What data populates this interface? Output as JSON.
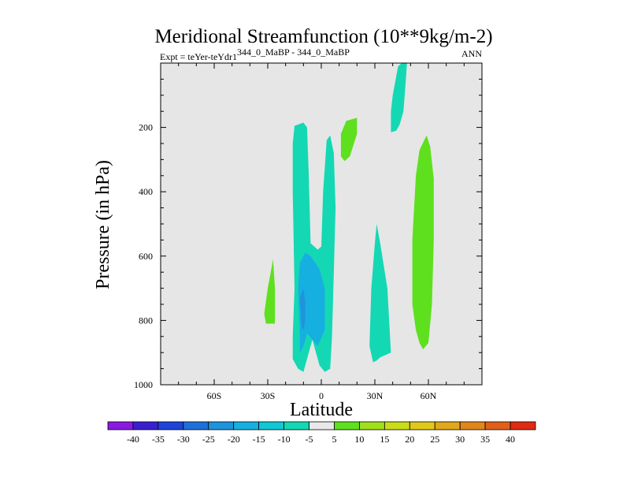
{
  "chart_data": {
    "type": "contour",
    "title": "Meridional Streamfunction (10**9kg/m-2)",
    "subtitle_left_prefix": "Expt = teYer-teYdr1",
    "subtitle_left_superscript": "344_0_MaBP - 344_0_MaBP",
    "subtitle_right": "ANN",
    "xlabel": "Latitude",
    "ylabel": "Pressure (in hPa)",
    "xlim": [
      -90,
      90
    ],
    "ylim": [
      1000,
      0
    ],
    "x_ticks": [
      {
        "value": -60,
        "label": "60S"
      },
      {
        "value": -30,
        "label": "30S"
      },
      {
        "value": 0,
        "label": "0"
      },
      {
        "value": 30,
        "label": "30N"
      },
      {
        "value": 60,
        "label": "60N"
      }
    ],
    "y_ticks": [
      {
        "value": 200,
        "label": "200"
      },
      {
        "value": 400,
        "label": "400"
      },
      {
        "value": 600,
        "label": "600"
      },
      {
        "value": 800,
        "label": "800"
      },
      {
        "value": 1000,
        "label": "1000"
      }
    ],
    "background_color": "#e6e6e6",
    "levels": [
      -40,
      -35,
      -30,
      -25,
      -20,
      -15,
      -10,
      -5,
      5,
      10,
      15,
      20,
      25,
      30,
      35,
      40
    ],
    "colorbar_colors": [
      "#8a1ae0",
      "#3a1fd0",
      "#1e44d8",
      "#1f6fd9",
      "#1f93dc",
      "#16b0e0",
      "#12c7d4",
      "#14d8b4",
      "#e8e8e8",
      "#5ee01e",
      "#a0e01a",
      "#cadc1a",
      "#e0c81a",
      "#e0a81a",
      "#e0861a",
      "#e0601a",
      "#e02a12"
    ],
    "regions": [
      {
        "color": "#5ee01e",
        "points": [
          [
            -31,
            810
          ],
          [
            -32,
            780
          ],
          [
            -30,
            700
          ],
          [
            -27,
            610
          ],
          [
            -26,
            700
          ],
          [
            -26,
            810
          ]
        ]
      },
      {
        "color": "#14d8b4",
        "points": [
          [
            -16,
            850
          ],
          [
            -15,
            700
          ],
          [
            -16,
            400
          ],
          [
            -16,
            250
          ],
          [
            -15,
            195
          ],
          [
            -10,
            185
          ],
          [
            -8,
            200
          ],
          [
            -7,
            350
          ],
          [
            -6,
            560
          ],
          [
            -2,
            580
          ],
          [
            0,
            570
          ],
          [
            1,
            400
          ],
          [
            3,
            240
          ],
          [
            5,
            225
          ],
          [
            7,
            280
          ],
          [
            8,
            450
          ],
          [
            7,
            650
          ],
          [
            6,
            850
          ],
          [
            5,
            950
          ],
          [
            2,
            960
          ],
          [
            -1,
            940
          ],
          [
            -5,
            860
          ],
          [
            -7,
            900
          ],
          [
            -10,
            960
          ],
          [
            -13,
            950
          ],
          [
            -16,
            920
          ]
        ]
      },
      {
        "color": "#16b0e0",
        "points": [
          [
            -12,
            850
          ],
          [
            -13,
            700
          ],
          [
            -12,
            620
          ],
          [
            -9,
            590
          ],
          [
            -6,
            600
          ],
          [
            -1,
            640
          ],
          [
            2,
            700
          ],
          [
            2,
            830
          ],
          [
            -2,
            880
          ],
          [
            -5,
            860
          ],
          [
            -8,
            840
          ],
          [
            -10,
            880
          ],
          [
            -12,
            900
          ]
        ]
      },
      {
        "color": "#1f93dc",
        "points": [
          [
            -11,
            820
          ],
          [
            -12,
            730
          ],
          [
            -10,
            700
          ],
          [
            -9,
            740
          ],
          [
            -9,
            800
          ],
          [
            -10,
            830
          ]
        ]
      },
      {
        "color": "#5ee01e",
        "points": [
          [
            11,
            290
          ],
          [
            11,
            220
          ],
          [
            14,
            180
          ],
          [
            20,
            170
          ],
          [
            20,
            220
          ],
          [
            16,
            290
          ],
          [
            13,
            305
          ]
        ]
      },
      {
        "color": "#14d8b4",
        "points": [
          [
            27,
            880
          ],
          [
            28,
            700
          ],
          [
            30,
            560
          ],
          [
            31,
            500
          ],
          [
            33,
            560
          ],
          [
            37,
            700
          ],
          [
            39,
            900
          ],
          [
            33,
            915
          ],
          [
            31,
            925
          ],
          [
            29,
            930
          ]
        ]
      },
      {
        "color": "#14d8b4",
        "points": [
          [
            39,
            215
          ],
          [
            39,
            150
          ],
          [
            40,
            100
          ],
          [
            43,
            10
          ],
          [
            45,
            0
          ],
          [
            48,
            0
          ],
          [
            47,
            80
          ],
          [
            46,
            150
          ],
          [
            44,
            190
          ],
          [
            42,
            210
          ]
        ]
      },
      {
        "color": "#5ee01e",
        "points": [
          [
            51,
            750
          ],
          [
            51,
            550
          ],
          [
            53,
            350
          ],
          [
            55,
            270
          ],
          [
            59,
            225
          ],
          [
            61,
            260
          ],
          [
            63,
            360
          ],
          [
            63,
            550
          ],
          [
            62,
            750
          ],
          [
            60,
            870
          ],
          [
            57,
            890
          ],
          [
            55,
            870
          ],
          [
            53,
            830
          ]
        ]
      }
    ]
  }
}
